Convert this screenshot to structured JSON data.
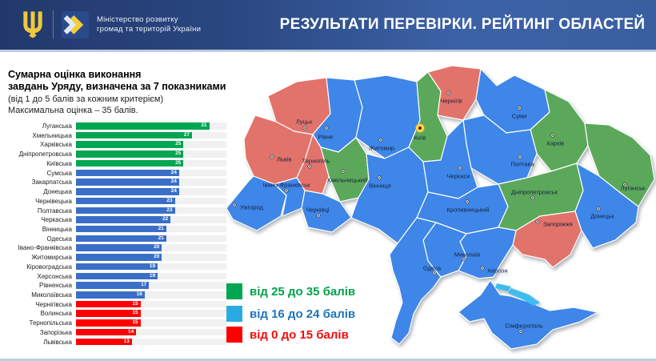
{
  "header": {
    "ministry_line1": "Міністерство розвитку",
    "ministry_line2": "громад та територій України",
    "title": "РЕЗУЛЬТАТИ ПЕРЕВІРКИ. РЕЙТИНГ ОБЛАСТЕЙ"
  },
  "panel": {
    "title_line1": "Сумарна оцінка виконання",
    "title_line2": "завдань Уряду, визначена за 7 показниками",
    "subtitle_line1": "(від 1 до 5 балів за кожним критерієм)",
    "subtitle_line2": "Максимальна оцінка – 35 балів."
  },
  "chart_data": {
    "type": "bar",
    "orientation": "horizontal",
    "title": "Сумарна оцінка виконання завдань Уряду, визначена за 7 показниками",
    "xlim": [
      0,
      35
    ],
    "max_score": 35,
    "categories": [
      "Луганська",
      "Хмельницька",
      "Харківська",
      "Дніпропетровська",
      "Київська",
      "Сумська",
      "Закарпатська",
      "Донецька",
      "Чернівецька",
      "Полтавська",
      "Черкаська",
      "Вінницька",
      "Одеська",
      "Івано-Франківська",
      "Житомирська",
      "Кіровоградська",
      "Херсонська",
      "Рівненська",
      "Миколаївська",
      "Чернігівська",
      "Волинська",
      "Тернопільська",
      "Запорізька",
      "Львівська"
    ],
    "values": [
      31,
      27,
      25,
      25,
      25,
      24,
      24,
      24,
      23,
      23,
      22,
      21,
      21,
      20,
      20,
      19,
      19,
      17,
      16,
      15,
      15,
      15,
      14,
      13
    ],
    "thresholds": {
      "high_min": 25,
      "mid_min": 16
    }
  },
  "legend": [
    {
      "label": "від 25 до 35 балів",
      "swatch": "#00A651",
      "text_color": "#00A14B"
    },
    {
      "label": "від 16 до 24 балів",
      "swatch": "#29ABE2",
      "text_color": "#1C75BB"
    },
    {
      "label": "від 0 до 15 балів",
      "swatch": "#FE0000",
      "text_color": "#F40B0B"
    }
  ],
  "colors": {
    "bar_high": "#00A651",
    "bar_mid": "#3A6FC7",
    "bar_low": "#FE0000",
    "map_high": "#5BA85A",
    "map_mid": "#3E86E8",
    "map_low": "#E2736B",
    "water": "#3FBCEE",
    "header_dark": "#22386B",
    "header_light": "#3C62A6"
  },
  "map": {
    "regions": [
      {
        "id": "zakarpattia",
        "city": "Ужгород",
        "category": "mid"
      },
      {
        "id": "lviv",
        "city": "Львів",
        "category": "low"
      },
      {
        "id": "volyn",
        "city": "Луцьк",
        "category": "low"
      },
      {
        "id": "rivne",
        "city": "Рівне",
        "category": "mid"
      },
      {
        "id": "ternopil",
        "city": "Тернопіль",
        "category": "low"
      },
      {
        "id": "ivanofrankivsk",
        "city": "Івано-Франківськ",
        "category": "mid"
      },
      {
        "id": "chernivtsi",
        "city": "Чернівці",
        "category": "mid"
      },
      {
        "id": "khmelnytskyi",
        "city": "Хмельницький",
        "category": "high"
      },
      {
        "id": "zhytomyr",
        "city": "Житомир",
        "category": "mid"
      },
      {
        "id": "vinnytsia",
        "city": "Вінниця",
        "category": "mid"
      },
      {
        "id": "kyiv",
        "city": "Київ",
        "category": "high"
      },
      {
        "id": "chernihiv",
        "city": "Чернігів",
        "category": "low"
      },
      {
        "id": "sumy",
        "city": "Суми",
        "category": "mid"
      },
      {
        "id": "kharkiv",
        "city": "Харків",
        "category": "high"
      },
      {
        "id": "poltava",
        "city": "Полтава",
        "category": "mid"
      },
      {
        "id": "cherkasy",
        "city": "Черкаси",
        "category": "mid"
      },
      {
        "id": "kirovohrad",
        "city": "Кропивницький",
        "category": "mid"
      },
      {
        "id": "dnipropetrovsk",
        "city": "Дніпропетровськ",
        "category": "high"
      },
      {
        "id": "zaporizhzhia",
        "city": "Запоріжжя",
        "category": "low"
      },
      {
        "id": "donetsk",
        "city": "Донецьк",
        "category": "mid"
      },
      {
        "id": "luhansk",
        "city": "Луганськ",
        "category": "high"
      },
      {
        "id": "kherson",
        "city": "Херсон",
        "category": "mid"
      },
      {
        "id": "mykolaiv",
        "city": "Миколаїв",
        "category": "mid"
      },
      {
        "id": "odesa",
        "city": "Одеса",
        "category": "mid"
      },
      {
        "id": "crimea",
        "city": "Сімферополь",
        "category": "mid"
      }
    ]
  }
}
